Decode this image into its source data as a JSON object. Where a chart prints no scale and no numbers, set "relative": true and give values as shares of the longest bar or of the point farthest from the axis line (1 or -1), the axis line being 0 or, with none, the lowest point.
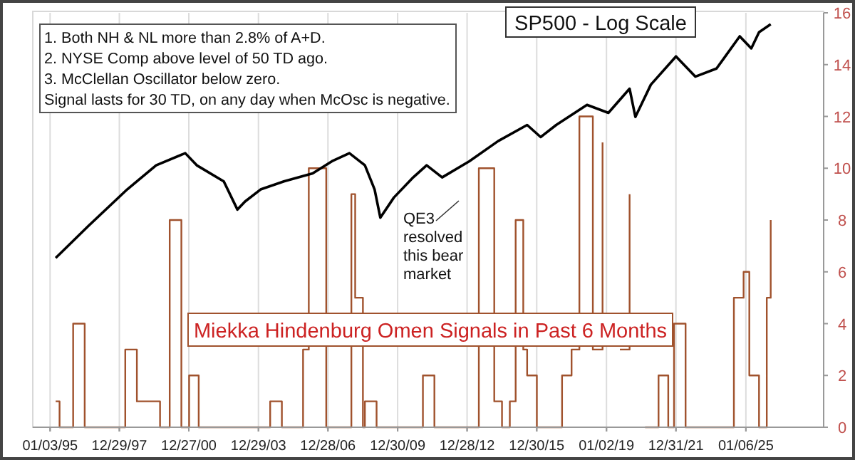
{
  "chart_data": [
    {
      "type": "step",
      "title": "Miekka Hindenburg Omen Signals in Past 6 Months",
      "xlim": [
        "1994-04-05",
        "2028-05-15"
      ],
      "xticks": [
        {
          "value": "1995-01-03",
          "label": null
        },
        {
          "value": "1997-12-29",
          "label": null
        },
        {
          "value": "2000-12-27",
          "label": null
        },
        {
          "value": "2003-12-29",
          "label": null
        },
        {
          "value": "2006-12-28",
          "label": null
        },
        {
          "value": "2009-12-30",
          "label": null
        },
        {
          "value": "2012-12-28",
          "label": null
        },
        {
          "value": "2015-12-30",
          "label": null
        },
        {
          "value": "2019-01-02",
          "label": null
        },
        {
          "value": "2021-12-31",
          "label": null
        },
        {
          "value": "2025-01-06",
          "label": null
        }
      ],
      "ylim": [
        0,
        16
      ],
      "yticks": [
        0,
        2,
        4,
        6,
        8,
        10,
        12,
        14,
        16
      ],
      "grid": "x",
      "tick_labels": "y",
      "annotations": [
        "1. Both NH & NL more than 2.8% of A+D.",
        "2. NYSE Comp above level of 50 TD ago.",
        "3. McClellan Oscillator below zero.",
        "Signal lasts for 30 TD, on any day when McOsc is negative."
      ],
      "x": [
        "1995-04",
        "1995-06",
        "1996-01",
        "1996-07",
        "1998-04",
        "1998-10",
        "1999-10",
        "2000-03",
        "2000-09",
        "2001-01",
        "2001-06",
        "2004-07",
        "2005-01",
        "2005-12",
        "2006-03",
        "2006-12",
        "2008-01",
        "2008-03",
        "2008-07",
        "2008-08",
        "2009-02",
        "2011-02",
        "2011-08",
        "2013-07",
        "2014-03",
        "2014-07",
        "2014-11",
        "2015-02",
        "2015-06",
        "2015-08",
        "2016-01",
        "2017-02",
        "2017-07",
        "2017-11",
        "2018-06",
        "2018-11",
        "2019-04",
        "2019-08",
        "2020-01",
        "2020-05",
        "2020-09",
        "2021-04",
        "2021-09",
        "2021-12",
        "2022-06",
        "2024-07",
        "2024-12",
        "2025-03",
        "2025-08",
        "2025-12",
        "2026-02"
      ],
      "series": [
        {
          "color": "#a0522d",
          "values": [
            1,
            0,
            4,
            0,
            3,
            1,
            0,
            8,
            0,
            2,
            0,
            1,
            0,
            3,
            10,
            0,
            9,
            5,
            0,
            1,
            0,
            2,
            0,
            10,
            1,
            0,
            1,
            8,
            3,
            2,
            0,
            2,
            3,
            12,
            3,
            11,
            null,
            3,
            9,
            null,
            0,
            2,
            0,
            4,
            0,
            5,
            6,
            2,
            0,
            5,
            8
          ]
        }
      ]
    },
    {
      "type": "line",
      "title": "SP500 - Log Scale",
      "relative": true,
      "xlim": [
        "1994-04-05",
        "2028-05-15"
      ],
      "xticks": [
        {
          "value": "1995-01-03",
          "label": "01/03/95"
        },
        {
          "value": "1997-12-29",
          "label": "12/29/97"
        },
        {
          "value": "2000-12-27",
          "label": "12/27/00"
        },
        {
          "value": "2003-12-29",
          "label": "12/29/03"
        },
        {
          "value": "2006-12-28",
          "label": "12/28/06"
        },
        {
          "value": "2009-12-30",
          "label": "12/30/09"
        },
        {
          "value": "2012-12-28",
          "label": "12/28/12"
        },
        {
          "value": "2015-12-30",
          "label": "12/30/15"
        },
        {
          "value": "2019-01-02",
          "label": "01/02/19"
        },
        {
          "value": "2021-12-31",
          "label": "12/31/21"
        },
        {
          "value": "2025-01-06",
          "label": "01/06/25"
        }
      ],
      "annotations": [
        "QE3 resolved this bear market"
      ],
      "x": [
        "1995-04",
        "1996-09",
        "1998-05",
        "1999-08",
        "2000-11",
        "2001-05",
        "2002-07",
        "2003-02",
        "2003-06",
        "2004-02",
        "2005-02",
        "2006-05",
        "2007-03",
        "2007-12",
        "2008-08",
        "2009-01",
        "2009-04",
        "2009-11",
        "2010-09",
        "2011-04",
        "2011-12",
        "2013-02",
        "2014-05",
        "2015-08",
        "2016-03",
        "2016-11",
        "2018-03",
        "2019-02",
        "2020-01",
        "2020-04",
        "2020-12",
        "2022-01",
        "2022-11",
        "2023-10",
        "2024-10",
        "2025-04",
        "2025-08",
        "2026-02"
      ],
      "series": [
        {
          "color": "#000000",
          "values": [
            0.42,
            0.5,
            0.59,
            0.65,
            0.68,
            0.65,
            0.61,
            0.54,
            0.56,
            0.59,
            0.61,
            0.63,
            0.66,
            0.68,
            0.65,
            0.59,
            0.52,
            0.57,
            0.62,
            0.65,
            0.62,
            0.66,
            0.71,
            0.75,
            0.72,
            0.75,
            0.8,
            0.78,
            0.84,
            0.77,
            0.85,
            0.92,
            0.87,
            0.89,
            0.97,
            0.94,
            0.98,
            1
          ]
        }
      ]
    }
  ]
}
